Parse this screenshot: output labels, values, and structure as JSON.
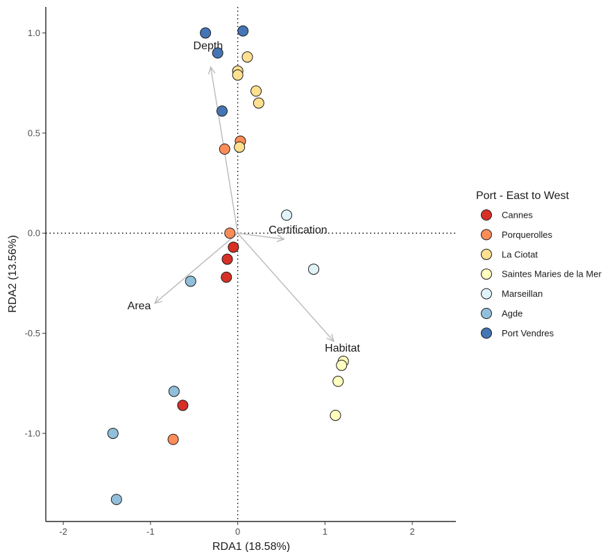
{
  "chart_data": {
    "type": "scatter",
    "title": "",
    "xlabel": "RDA1 (18.58%)",
    "ylabel": "RDA2 (13.56%)",
    "xlim": [
      -2.2,
      2.5
    ],
    "ylim": [
      -1.44,
      1.13
    ],
    "x_ticks": [
      -2,
      -1,
      0,
      1,
      2
    ],
    "y_ticks": [
      1.0,
      0.5,
      0.0,
      -0.5,
      -1.0
    ],
    "x_tick_labels": [
      "-2",
      "-1",
      "0",
      "1",
      "2"
    ],
    "y_tick_labels": [
      "1.0",
      "0.5",
      "0.0",
      "-0.5",
      "-1.0"
    ],
    "grid": false,
    "reference_lines": [
      {
        "axis": "x",
        "value": 0,
        "style": "dotted"
      },
      {
        "axis": "y",
        "value": 0,
        "style": "dotted"
      }
    ],
    "legend": {
      "title": "Port - East to West",
      "position": "right"
    },
    "series": [
      {
        "name": "Cannes",
        "color": "#d73027",
        "points": [
          [
            -0.05,
            -0.07
          ],
          [
            -0.12,
            -0.13
          ],
          [
            -0.13,
            -0.22
          ],
          [
            -0.63,
            -0.86
          ]
        ]
      },
      {
        "name": "Porquerolles",
        "color": "#fc8d59",
        "points": [
          [
            0.03,
            0.46
          ],
          [
            -0.15,
            0.42
          ],
          [
            -0.09,
            0.0
          ],
          [
            -0.74,
            -1.03
          ]
        ]
      },
      {
        "name": "La Ciotat",
        "color": "#fee090",
        "points": [
          [
            0.11,
            0.88
          ],
          [
            0.0,
            0.81
          ],
          [
            0.0,
            0.79
          ],
          [
            0.21,
            0.71
          ],
          [
            0.24,
            0.65
          ],
          [
            0.02,
            0.43
          ]
        ]
      },
      {
        "name": "Saintes Maries de la Mer",
        "color": "#ffffbf",
        "points": [
          [
            1.21,
            -0.64
          ],
          [
            1.19,
            -0.66
          ],
          [
            1.15,
            -0.74
          ],
          [
            1.12,
            -0.91
          ]
        ]
      },
      {
        "name": "Marseillan",
        "color": "#e0f3f8",
        "points": [
          [
            0.56,
            0.09
          ],
          [
            0.87,
            -0.18
          ]
        ]
      },
      {
        "name": "Agde",
        "color": "#91bfdb",
        "points": [
          [
            -0.54,
            -0.24
          ],
          [
            -0.73,
            -0.79
          ],
          [
            -1.43,
            -1.0
          ],
          [
            -1.39,
            -1.33
          ]
        ]
      },
      {
        "name": "Port Vendres",
        "color": "#4575b4",
        "points": [
          [
            -0.37,
            1.0
          ],
          [
            0.06,
            1.01
          ],
          [
            -0.23,
            0.9
          ],
          [
            -0.18,
            0.61
          ]
        ]
      }
    ],
    "vectors": [
      {
        "label": "Depth",
        "x": -0.31,
        "y": 0.83,
        "label_x": -0.34,
        "label_y": 0.94
      },
      {
        "label": "Certification",
        "x": 0.53,
        "y": -0.03,
        "label_x": 0.69,
        "label_y": 0.02
      },
      {
        "label": "Area",
        "x": -0.95,
        "y": -0.35,
        "label_x": -1.13,
        "label_y": -0.36
      },
      {
        "label": "Habitat",
        "x": 1.1,
        "y": -0.54,
        "label_x": 1.2,
        "label_y": -0.57
      }
    ]
  }
}
